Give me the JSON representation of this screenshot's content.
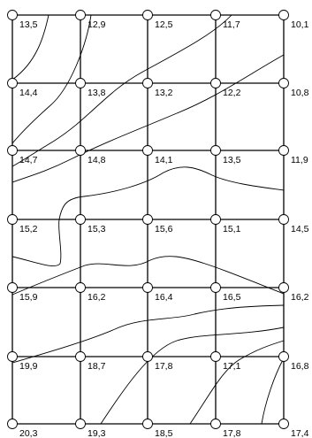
{
  "grid": {
    "rows": [
      [
        "13,5",
        "12,9",
        "12,5",
        "11,7",
        "10,1"
      ],
      [
        "14,4",
        "13,8",
        "13,2",
        "12,2",
        "10,8"
      ],
      [
        "14,7",
        "14,8",
        "14,1",
        "13,5",
        "11,9"
      ],
      [
        "15,2",
        "15,3",
        "15,6",
        "15,1",
        "14,5"
      ],
      [
        "15,9",
        "16,2",
        "16,4",
        "16,5",
        "16,2"
      ],
      [
        "19,9",
        "18,7",
        "17,8",
        "17,1",
        "16,8"
      ],
      [
        "20,3",
        "19,3",
        "18,5",
        "17,8",
        "17,4"
      ]
    ]
  },
  "colors": {
    "line": "#000000",
    "background": "#ffffff"
  }
}
